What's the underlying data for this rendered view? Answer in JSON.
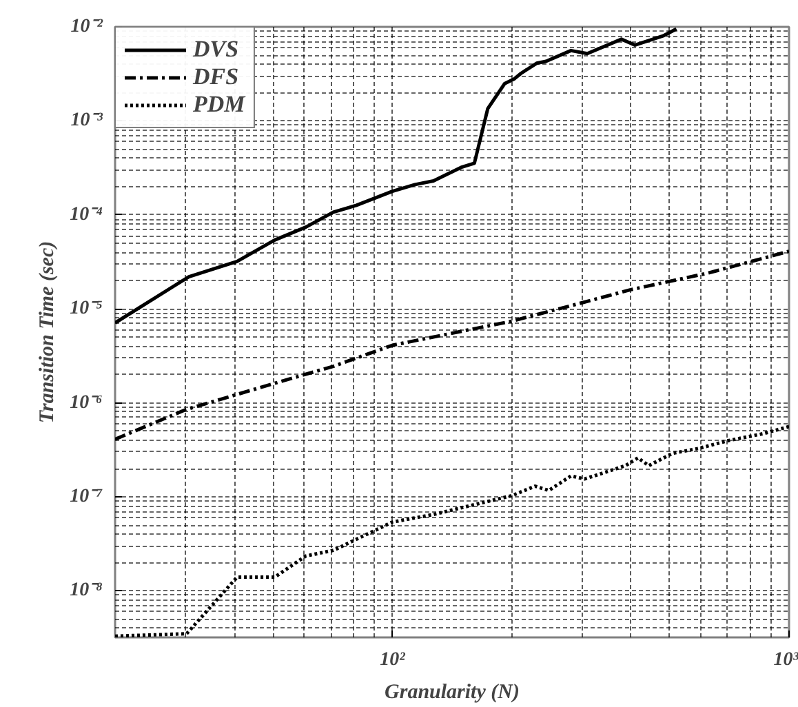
{
  "chart_data": {
    "type": "line",
    "xlabel": "Granularity (N)",
    "ylabel": "Transition Time (sec)",
    "log": "xy",
    "grid": true,
    "legend": "top left",
    "xlim": [
      20,
      1000
    ],
    "ylim": [
      3.2e-09,
      0.01
    ],
    "xticks": [
      {
        "value": 100,
        "label": "10²"
      },
      {
        "value": 1000,
        "label": "10³"
      }
    ],
    "yticks": [
      {
        "value": 1e-08,
        "label": "10⁻⁸"
      },
      {
        "value": 1e-07,
        "label": "10⁻⁷"
      },
      {
        "value": 1e-06,
        "label": "10⁻⁶"
      },
      {
        "value": 1e-05,
        "label": "10⁻⁵"
      },
      {
        "value": 0.0001,
        "label": "10⁻⁴"
      },
      {
        "value": 0.001,
        "label": "10⁻³"
      },
      {
        "value": 0.01,
        "label": "10⁻²"
      }
    ],
    "series": [
      {
        "name": "DVS",
        "color": "#000000",
        "line_style": "solid",
        "x": [
          20,
          30.7,
          40.6,
          50.5,
          60.5,
          71,
          81,
          100,
          114,
          127,
          149,
          161,
          174,
          192,
          203,
          211,
          231,
          244,
          282,
          310,
          378,
          409,
          481,
          520
        ],
        "values": [
          7.1e-06,
          2.2e-05,
          3.2e-05,
          5.4e-05,
          7.4e-05,
          0.000107,
          0.000126,
          0.000178,
          0.00021,
          0.00023,
          0.00032,
          0.000355,
          0.00135,
          0.0025,
          0.0028,
          0.0032,
          0.0041,
          0.0043,
          0.0056,
          0.0052,
          0.0074,
          0.0064,
          0.008,
          0.0095
        ]
      },
      {
        "name": "DFS",
        "color": "#000000",
        "line_style": "dashed",
        "x": [
          20,
          30.2,
          40.6,
          51.6,
          71,
          100,
          200,
          298,
          399,
          624,
          1000
        ],
        "values": [
          4.1e-07,
          8.5e-07,
          1.23e-06,
          1.66e-06,
          2.45e-06,
          4.1e-06,
          7.4e-06,
          1.15e-05,
          1.6e-05,
          2.4e-05,
          4.1e-05
        ]
      },
      {
        "name": "PDM",
        "color": "#000000",
        "line_style": "dotted",
        "x": [
          20,
          30.3,
          40.6,
          50.5,
          60.5,
          71,
          100,
          127,
          200,
          229,
          248,
          282,
          305,
          387,
          416,
          443,
          508,
          596,
          699,
          860,
          1000
        ],
        "values": [
          3.3e-09,
          3.5e-09,
          1.4e-08,
          1.4e-08,
          2.35e-08,
          2.7e-08,
          5.4e-08,
          6.5e-08,
          1.03e-07,
          1.3e-07,
          1.17e-07,
          1.67e-07,
          1.55e-07,
          2.15e-07,
          2.6e-07,
          2.15e-07,
          2.9e-07,
          3.3e-07,
          3.95e-07,
          4.7e-07,
          5.6e-07
        ]
      }
    ]
  }
}
